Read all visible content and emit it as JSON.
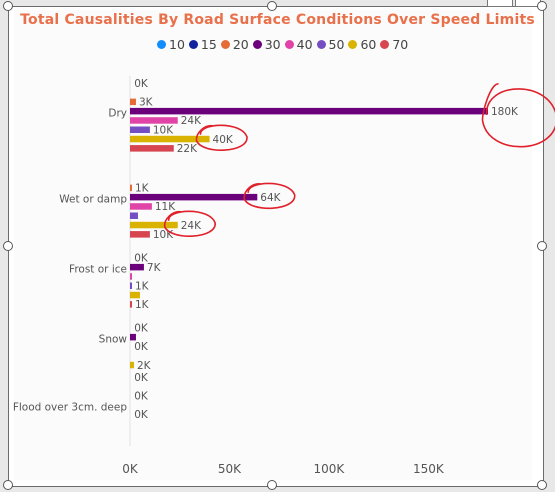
{
  "chart_data": {
    "type": "bar",
    "orientation": "horizontal",
    "title": "Total Causalities By Road Surface Conditions Over Speed Limits",
    "legend_position": "top",
    "categories": [
      "Dry",
      "Wet or damp",
      "Frost or ice",
      "Snow",
      "Flood over 3cm. deep"
    ],
    "series": [
      {
        "name": "10",
        "color": "#118dff",
        "values": [
          0,
          0,
          0,
          0,
          0
        ],
        "labels": [
          "0K",
          "",
          "",
          "",
          "0K"
        ]
      },
      {
        "name": "15",
        "color": "#12239e",
        "values": [
          0,
          0,
          0,
          0,
          0
        ],
        "labels": [
          "",
          "",
          "",
          "",
          ""
        ]
      },
      {
        "name": "20",
        "color": "#e66c37",
        "values": [
          3000,
          1000,
          0,
          0,
          0
        ],
        "labels": [
          "3K",
          "1K",
          "0K",
          "0K",
          "0K"
        ]
      },
      {
        "name": "30",
        "color": "#6b007b",
        "values": [
          180000,
          64000,
          7000,
          3000,
          0
        ],
        "labels": [
          "180K",
          "64K",
          "7K",
          "",
          ""
        ]
      },
      {
        "name": "40",
        "color": "#e044a7",
        "values": [
          24000,
          11000,
          1000,
          0,
          0
        ],
        "labels": [
          "24K",
          "11K",
          "",
          "0K",
          "0K"
        ]
      },
      {
        "name": "50",
        "color": "#744ec2",
        "values": [
          10000,
          4000,
          1000,
          0,
          0
        ],
        "labels": [
          "10K",
          "",
          "1K",
          "",
          ""
        ]
      },
      {
        "name": "60",
        "color": "#d9b300",
        "values": [
          40000,
          24000,
          5000,
          2000,
          0
        ],
        "labels": [
          "40K",
          "24K",
          "",
          "2K",
          ""
        ]
      },
      {
        "name": "70",
        "color": "#d64550",
        "values": [
          22000,
          10000,
          1000,
          0,
          0
        ],
        "labels": [
          "22K",
          "10K",
          "1K",
          "",
          ""
        ]
      }
    ],
    "x_ticks": [
      0,
      50000,
      100000,
      150000
    ],
    "x_tick_labels": [
      "0K",
      "50K",
      "100K",
      "150K"
    ],
    "xlim": [
      0,
      190000
    ],
    "grid": false,
    "annotation_color": "#e0202a",
    "annotated_labels": [
      "180K",
      "40K",
      "64K",
      "24K"
    ]
  }
}
